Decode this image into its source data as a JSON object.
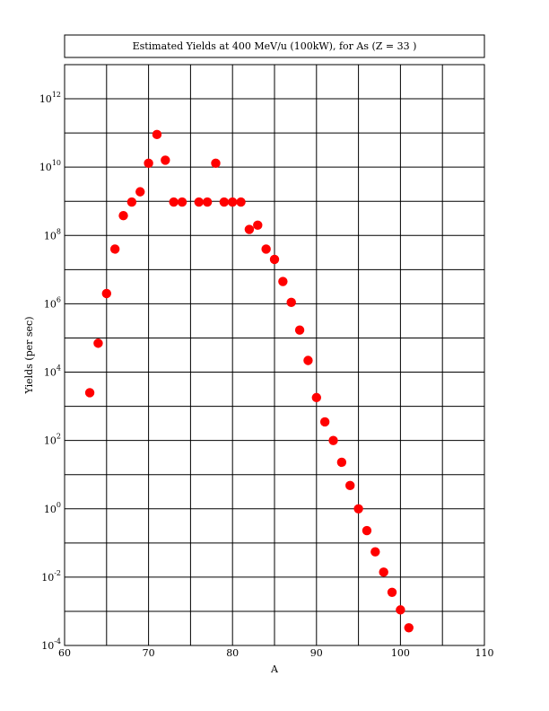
{
  "chart_data": {
    "type": "scatter",
    "title": "Estimated Yields at 400 MeV/u (100kW), for As (Z = 33 )",
    "xlabel": "A",
    "ylabel": "Yields (per sec)",
    "xlim": [
      60,
      110
    ],
    "ylim_log10": [
      -4,
      13
    ],
    "y_scale": "log",
    "grid": true,
    "marker_color": "#ff0000",
    "x_ticks": [
      "60",
      "70",
      "80",
      "90",
      "100",
      "110"
    ],
    "y_ticks": [
      {
        "base": "10",
        "exp": "-4"
      },
      {
        "base": "10",
        "exp": "-2"
      },
      {
        "base": "10",
        "exp": "0"
      },
      {
        "base": "10",
        "exp": "2"
      },
      {
        "base": "10",
        "exp": "4"
      },
      {
        "base": "10",
        "exp": "6"
      },
      {
        "base": "10",
        "exp": "8"
      },
      {
        "base": "10",
        "exp": "10"
      },
      {
        "base": "10",
        "exp": "12"
      }
    ],
    "points": [
      {
        "x": 63,
        "y": 2500.0
      },
      {
        "x": 64,
        "y": 70000.0
      },
      {
        "x": 65,
        "y": 2000000.0
      },
      {
        "x": 66,
        "y": 40000000.0
      },
      {
        "x": 67,
        "y": 380000000.0
      },
      {
        "x": 68,
        "y": 950000000.0
      },
      {
        "x": 69,
        "y": 1900000000.0
      },
      {
        "x": 70,
        "y": 13000000000.0
      },
      {
        "x": 71,
        "y": 90000000000.0
      },
      {
        "x": 72,
        "y": 16000000000.0
      },
      {
        "x": 73,
        "y": 950000000.0
      },
      {
        "x": 74,
        "y": 950000000.0
      },
      {
        "x": 76,
        "y": 950000000.0
      },
      {
        "x": 77,
        "y": 950000000.0
      },
      {
        "x": 78,
        "y": 13000000000.0
      },
      {
        "x": 79,
        "y": 950000000.0
      },
      {
        "x": 80,
        "y": 950000000.0
      },
      {
        "x": 81,
        "y": 950000000.0
      },
      {
        "x": 82,
        "y": 150000000.0
      },
      {
        "x": 83,
        "y": 200000000.0
      },
      {
        "x": 84,
        "y": 40000000.0
      },
      {
        "x": 85,
        "y": 20000000.0
      },
      {
        "x": 86,
        "y": 4500000.0
      },
      {
        "x": 87,
        "y": 1100000.0
      },
      {
        "x": 88,
        "y": 170000.0
      },
      {
        "x": 89,
        "y": 22000.0
      },
      {
        "x": 90,
        "y": 1800.0
      },
      {
        "x": 91,
        "y": 350.0
      },
      {
        "x": 92,
        "y": 100.0
      },
      {
        "x": 93,
        "y": 23.0
      },
      {
        "x": 94,
        "y": 4.8
      },
      {
        "x": 95,
        "y": 1.0
      },
      {
        "x": 96,
        "y": 0.23
      },
      {
        "x": 97,
        "y": 0.055
      },
      {
        "x": 98,
        "y": 0.014
      },
      {
        "x": 99,
        "y": 0.0036
      },
      {
        "x": 100,
        "y": 0.0011
      },
      {
        "x": 101,
        "y": 0.00033
      }
    ]
  }
}
